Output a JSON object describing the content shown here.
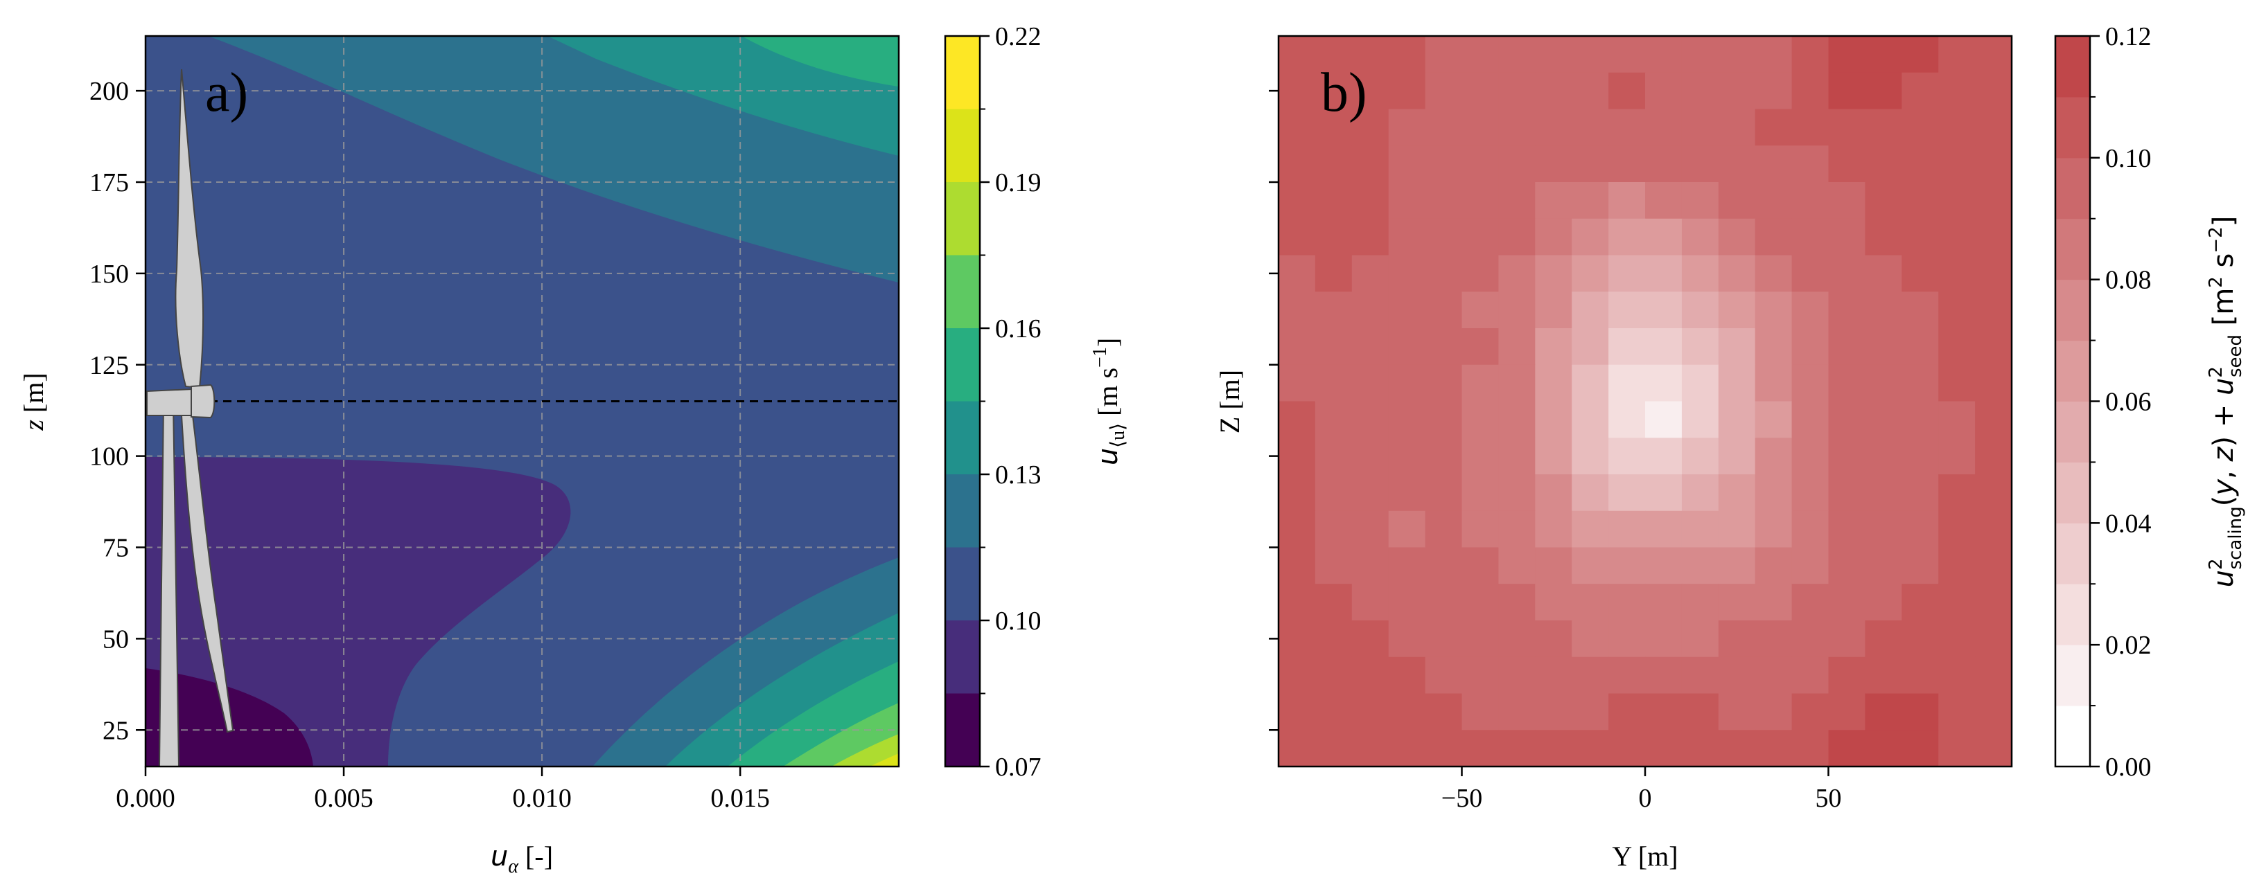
{
  "chart_data": [
    {
      "panel": "a)",
      "type": "contour",
      "xlabel": "u_α [-]",
      "xlabel_parts": {
        "sym": "u",
        "sub": "α",
        "unit": " [-]"
      },
      "ylabel": "z [m]",
      "ylabel_parts": {
        "sym": "z",
        "unit": " [m]"
      },
      "xlim": [
        0.0,
        0.019
      ],
      "ylim": [
        15,
        215
      ],
      "xticks": [
        0.0,
        0.005,
        0.01,
        0.015
      ],
      "xtick_labels": [
        "0.000",
        "0.005",
        "0.010",
        "0.015"
      ],
      "yticks": [
        25,
        50,
        75,
        100,
        125,
        150,
        175,
        200
      ],
      "ytick_labels": [
        "25",
        "50",
        "75",
        "100",
        "125",
        "150",
        "175",
        "200"
      ],
      "grid": true,
      "hub_height_line": 115,
      "turbine_overlay": true,
      "colorbar": {
        "label": "u_⟨u⟩ [m s^-1]",
        "label_parts": {
          "sym": "u",
          "sub": "⟨u⟩",
          "unit": " [m s",
          "sup": "−1",
          "close": "]"
        },
        "levels": [
          0.07,
          0.085,
          0.1,
          0.115,
          0.13,
          0.145,
          0.16,
          0.175,
          0.19,
          0.205,
          0.22
        ],
        "ticks": [
          0.07,
          0.1,
          0.13,
          0.16,
          0.19,
          0.22
        ],
        "tick_labels": [
          "0.07",
          "0.10",
          "0.13",
          "0.16",
          "0.19",
          "0.22"
        ],
        "colors": [
          "#440154",
          "#472d7b",
          "#3b528b",
          "#2c728e",
          "#21918c",
          "#28ae80",
          "#5ec962",
          "#addc30",
          "#dce319",
          "#fde725"
        ]
      }
    },
    {
      "panel": "b)",
      "type": "heatmap",
      "xlabel": "Y [m]",
      "ylabel": "Z [m]",
      "xlim": [
        -100,
        100
      ],
      "ylim": [
        15,
        215
      ],
      "xticks": [
        -50,
        0,
        50
      ],
      "xtick_labels": [
        "−50",
        "0",
        "50"
      ],
      "grid_cols": 20,
      "grid_rows": 20,
      "values_note": "approximate per-cell values, rows ordered top to bottom",
      "values": [
        [
          0.1,
          0.1,
          0.1,
          0.1,
          0.09,
          0.09,
          0.09,
          0.09,
          0.09,
          0.09,
          0.09,
          0.09,
          0.09,
          0.09,
          0.1,
          0.11,
          0.11,
          0.11,
          0.1,
          0.1
        ],
        [
          0.1,
          0.1,
          0.1,
          0.1,
          0.09,
          0.09,
          0.09,
          0.09,
          0.09,
          0.1,
          0.09,
          0.09,
          0.09,
          0.09,
          0.1,
          0.11,
          0.11,
          0.1,
          0.1,
          0.1
        ],
        [
          0.1,
          0.1,
          0.1,
          0.09,
          0.09,
          0.09,
          0.09,
          0.09,
          0.09,
          0.09,
          0.09,
          0.09,
          0.09,
          0.1,
          0.1,
          0.1,
          0.1,
          0.1,
          0.1,
          0.1
        ],
        [
          0.1,
          0.1,
          0.1,
          0.09,
          0.09,
          0.09,
          0.09,
          0.09,
          0.09,
          0.09,
          0.09,
          0.09,
          0.09,
          0.09,
          0.09,
          0.1,
          0.1,
          0.1,
          0.1,
          0.1
        ],
        [
          0.1,
          0.1,
          0.1,
          0.09,
          0.09,
          0.09,
          0.09,
          0.08,
          0.08,
          0.07,
          0.08,
          0.08,
          0.09,
          0.09,
          0.09,
          0.09,
          0.1,
          0.1,
          0.1,
          0.1
        ],
        [
          0.1,
          0.1,
          0.1,
          0.09,
          0.09,
          0.09,
          0.09,
          0.08,
          0.07,
          0.06,
          0.06,
          0.07,
          0.08,
          0.09,
          0.09,
          0.09,
          0.1,
          0.1,
          0.1,
          0.1
        ],
        [
          0.09,
          0.1,
          0.09,
          0.09,
          0.09,
          0.09,
          0.08,
          0.07,
          0.06,
          0.05,
          0.05,
          0.06,
          0.07,
          0.08,
          0.09,
          0.09,
          0.09,
          0.1,
          0.1,
          0.1
        ],
        [
          0.09,
          0.09,
          0.09,
          0.09,
          0.09,
          0.08,
          0.08,
          0.07,
          0.05,
          0.04,
          0.04,
          0.05,
          0.06,
          0.07,
          0.08,
          0.09,
          0.09,
          0.09,
          0.1,
          0.1
        ],
        [
          0.09,
          0.09,
          0.09,
          0.09,
          0.09,
          0.09,
          0.08,
          0.06,
          0.05,
          0.03,
          0.03,
          0.04,
          0.05,
          0.07,
          0.08,
          0.09,
          0.09,
          0.09,
          0.1,
          0.1
        ],
        [
          0.09,
          0.09,
          0.09,
          0.09,
          0.09,
          0.08,
          0.08,
          0.06,
          0.04,
          0.02,
          0.02,
          0.03,
          0.05,
          0.07,
          0.08,
          0.09,
          0.09,
          0.09,
          0.1,
          0.1
        ],
        [
          0.1,
          0.09,
          0.09,
          0.09,
          0.09,
          0.08,
          0.08,
          0.06,
          0.04,
          0.02,
          0.01,
          0.03,
          0.05,
          0.06,
          0.08,
          0.09,
          0.09,
          0.09,
          0.09,
          0.1
        ],
        [
          0.1,
          0.09,
          0.09,
          0.09,
          0.09,
          0.08,
          0.08,
          0.06,
          0.04,
          0.03,
          0.03,
          0.04,
          0.05,
          0.07,
          0.08,
          0.09,
          0.09,
          0.09,
          0.09,
          0.1
        ],
        [
          0.1,
          0.09,
          0.09,
          0.09,
          0.09,
          0.08,
          0.08,
          0.07,
          0.05,
          0.04,
          0.04,
          0.05,
          0.06,
          0.07,
          0.08,
          0.09,
          0.09,
          0.09,
          0.1,
          0.1
        ],
        [
          0.1,
          0.09,
          0.09,
          0.08,
          0.09,
          0.08,
          0.08,
          0.07,
          0.06,
          0.06,
          0.06,
          0.06,
          0.06,
          0.07,
          0.08,
          0.09,
          0.09,
          0.09,
          0.1,
          0.1
        ],
        [
          0.1,
          0.09,
          0.09,
          0.09,
          0.09,
          0.09,
          0.08,
          0.08,
          0.07,
          0.07,
          0.07,
          0.07,
          0.07,
          0.08,
          0.08,
          0.09,
          0.09,
          0.09,
          0.1,
          0.1
        ],
        [
          0.1,
          0.1,
          0.09,
          0.09,
          0.09,
          0.09,
          0.09,
          0.08,
          0.08,
          0.08,
          0.08,
          0.08,
          0.08,
          0.08,
          0.09,
          0.09,
          0.09,
          0.1,
          0.1,
          0.1
        ],
        [
          0.1,
          0.1,
          0.1,
          0.09,
          0.09,
          0.09,
          0.09,
          0.09,
          0.08,
          0.08,
          0.08,
          0.08,
          0.09,
          0.09,
          0.09,
          0.09,
          0.1,
          0.1,
          0.1,
          0.1
        ],
        [
          0.1,
          0.1,
          0.1,
          0.1,
          0.09,
          0.09,
          0.09,
          0.09,
          0.09,
          0.09,
          0.09,
          0.09,
          0.09,
          0.09,
          0.09,
          0.1,
          0.1,
          0.1,
          0.1,
          0.1
        ],
        [
          0.1,
          0.1,
          0.1,
          0.1,
          0.1,
          0.09,
          0.09,
          0.09,
          0.09,
          0.1,
          0.1,
          0.1,
          0.09,
          0.09,
          0.1,
          0.1,
          0.11,
          0.11,
          0.1,
          0.1
        ],
        [
          0.1,
          0.1,
          0.1,
          0.1,
          0.1,
          0.1,
          0.1,
          0.1,
          0.1,
          0.1,
          0.1,
          0.1,
          0.1,
          0.1,
          0.1,
          0.11,
          0.11,
          0.11,
          0.1,
          0.1
        ]
      ],
      "colorbar": {
        "label": "u²_scaling(y, z) + u²_seed [m² s^-2]",
        "vmin": 0.0,
        "vmax": 0.12,
        "n_levels": 12,
        "ticks": [
          0.0,
          0.02,
          0.04,
          0.06,
          0.08,
          0.1,
          0.12
        ],
        "tick_labels": [
          "0.00",
          "0.02",
          "0.04",
          "0.06",
          "0.08",
          "0.10",
          "0.12"
        ],
        "color_low": "#ffffff",
        "color_high": "#c0474a"
      }
    }
  ]
}
